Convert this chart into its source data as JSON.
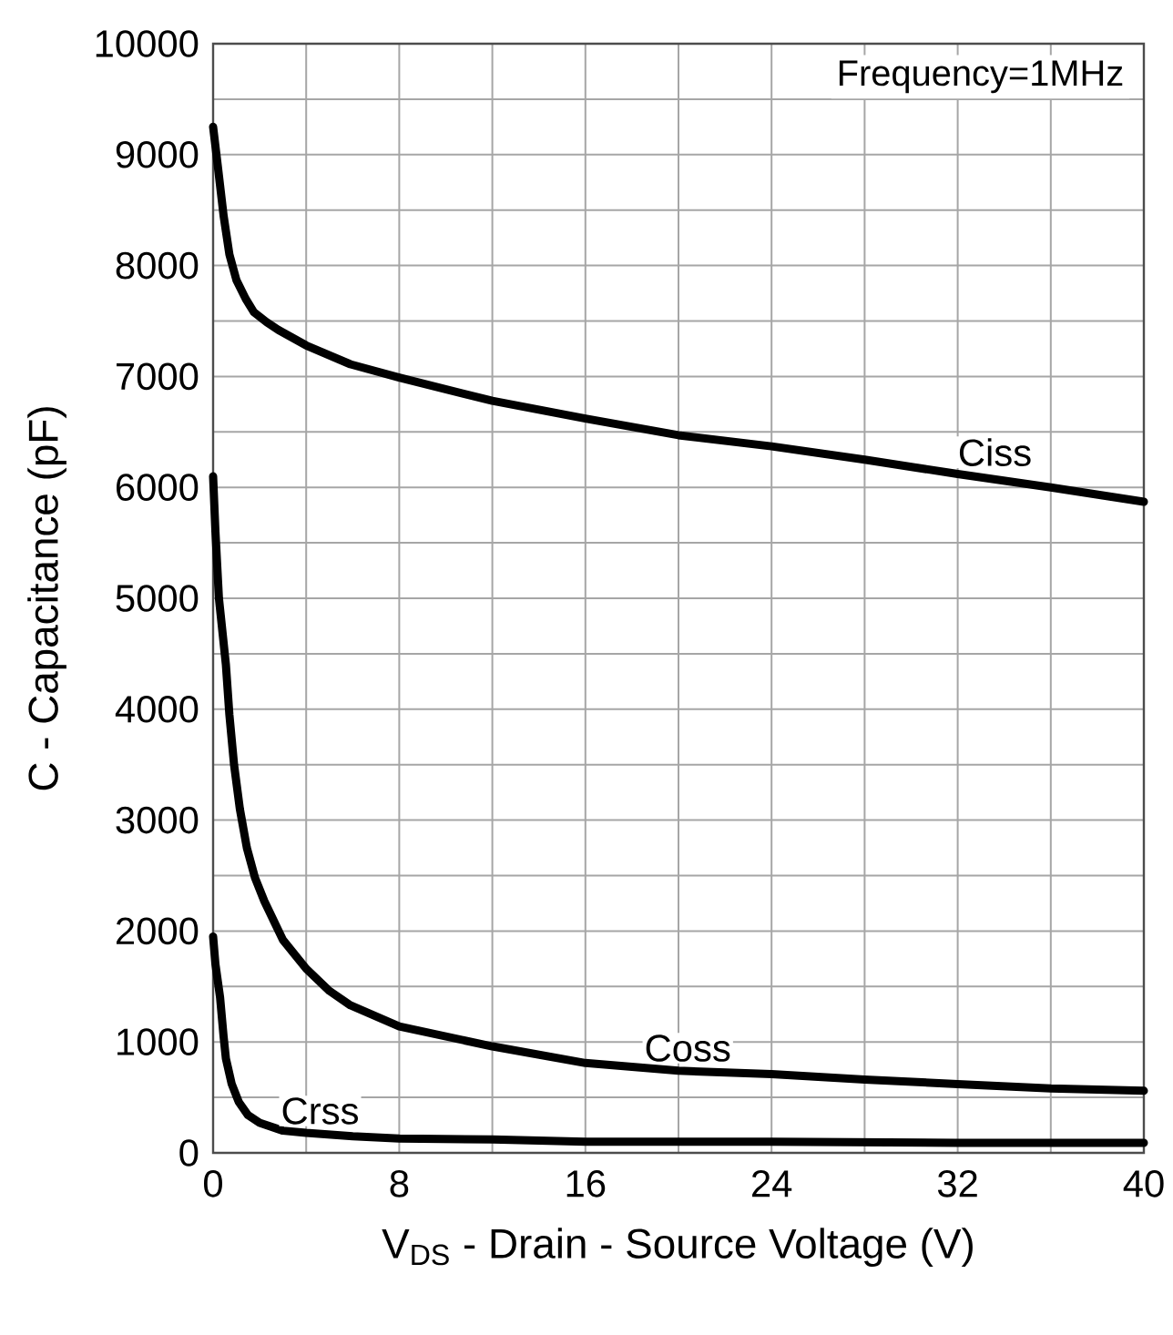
{
  "chart_data": {
    "type": "line",
    "xlabel": "V$_{DS}$ - Drain - Source Voltage (V)",
    "ylabel": "C - Capacitance (pF)",
    "annotations": [
      "Frequency=1MHz"
    ],
    "xlim": [
      0,
      40
    ],
    "ylim": [
      0,
      10000
    ],
    "xticks": [
      0,
      {
        "value": 4,
        "label": null
      },
      8,
      {
        "value": 12,
        "label": null
      },
      16,
      {
        "value": 20,
        "label": null
      },
      24,
      {
        "value": 28,
        "label": null
      },
      32,
      {
        "value": 36,
        "label": null
      },
      40
    ],
    "yticks": [
      0,
      {
        "value": 500,
        "label": null
      },
      1000,
      {
        "value": 1500,
        "label": null
      },
      2000,
      {
        "value": 2500,
        "label": null
      },
      3000,
      {
        "value": 3500,
        "label": null
      },
      4000,
      {
        "value": 4500,
        "label": null
      },
      5000,
      {
        "value": 5500,
        "label": null
      },
      6000,
      {
        "value": 6500,
        "label": null
      },
      7000,
      {
        "value": 7500,
        "label": null
      },
      8000,
      {
        "value": 8500,
        "label": null
      },
      9000,
      {
        "value": 9500,
        "label": null
      },
      10000
    ],
    "grid": true,
    "line_style": "solid",
    "series": [
      {
        "name": "Ciss",
        "color": "#000000",
        "x": [
          0,
          0.2,
          0.45,
          0.7,
          1,
          1.4,
          1.75,
          2.3,
          2.8,
          4,
          5.9,
          8,
          12,
          16,
          20,
          24,
          28,
          32,
          36,
          40
        ],
        "values": [
          9250,
          8900,
          8450,
          8100,
          7870,
          7700,
          7580,
          7490,
          7420,
          7280,
          7110,
          6990,
          6780,
          6620,
          6470,
          6370,
          6250,
          6120,
          6000,
          5870
        ]
      },
      {
        "name": "Coss",
        "color": "#000000",
        "x": [
          0,
          0.1,
          0.25,
          0.4,
          0.55,
          0.7,
          0.9,
          1.15,
          1.45,
          1.8,
          2.2,
          3,
          4,
          5,
          5.9,
          8,
          12,
          16,
          20,
          24,
          28,
          32,
          36,
          40
        ],
        "values": [
          6100,
          5600,
          5000,
          4700,
          4400,
          3950,
          3500,
          3100,
          2750,
          2480,
          2270,
          1920,
          1660,
          1460,
          1330,
          1140,
          960,
          810,
          740,
          710,
          660,
          620,
          580,
          560
        ]
      },
      {
        "name": "Crss",
        "color": "#000000",
        "x": [
          0,
          0.1,
          0.2,
          0.3,
          0.45,
          0.55,
          0.8,
          1.1,
          1.5,
          2,
          3,
          4,
          6,
          8,
          12,
          16,
          24,
          32,
          40
        ],
        "values": [
          1950,
          1700,
          1550,
          1400,
          1050,
          850,
          620,
          460,
          340,
          270,
          200,
          180,
          150,
          130,
          120,
          100,
          100,
          90,
          90
        ]
      }
    ]
  }
}
